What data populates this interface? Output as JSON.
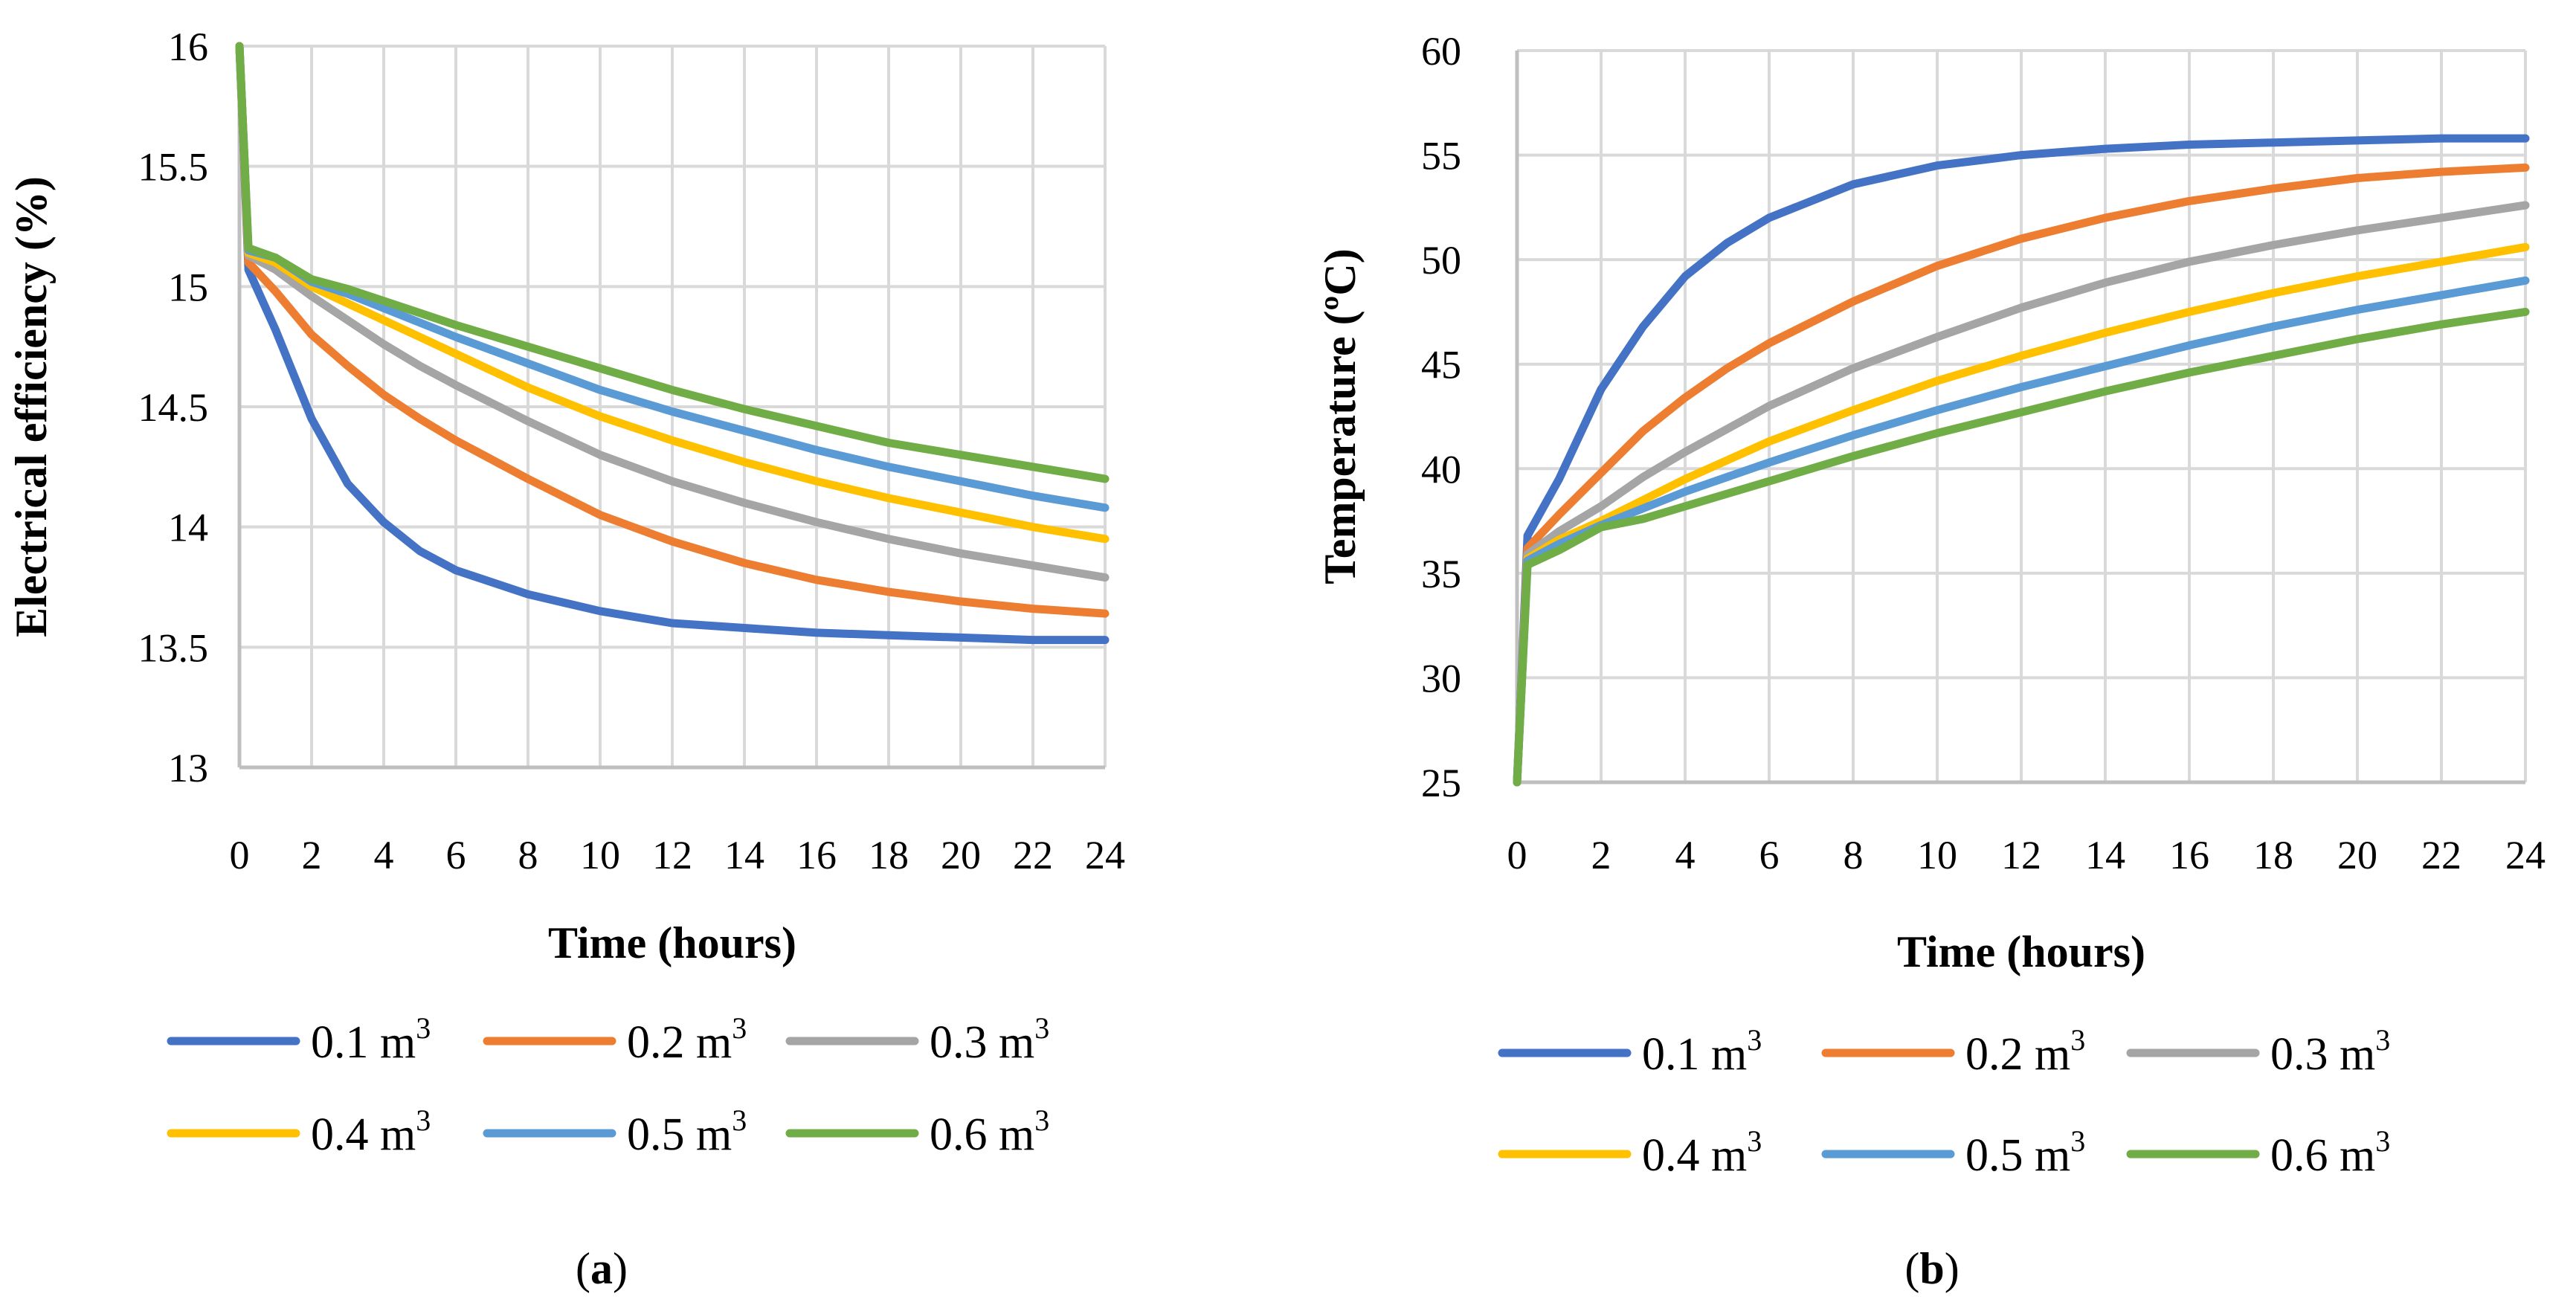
{
  "colors": {
    "0.1": "#4472C4",
    "0.2": "#ED7D31",
    "0.3": "#A5A5A5",
    "0.4": "#FFC000",
    "0.5": "#5B9BD5",
    "0.6": "#70AD47",
    "grid": "#d9d9d9",
    "axis": "#bfbfbf"
  },
  "legend_unit": "m",
  "legend_sup": "3",
  "chart_data": [
    {
      "type": "line",
      "panel_label": {
        "open": "(",
        "letter": "a",
        "close": ")"
      },
      "xlabel": "Time (hours)",
      "ylabel": "Electrical efficiency (%)",
      "xlim": [
        0,
        24
      ],
      "ylim": [
        13,
        16
      ],
      "x_ticks": [
        "0",
        "2",
        "4",
        "6",
        "8",
        "10",
        "12",
        "14",
        "16",
        "18",
        "20",
        "22",
        "24"
      ],
      "y_ticks": [
        "13",
        "13.5",
        "14",
        "14.5",
        "15",
        "15.5",
        "16"
      ],
      "grid": true,
      "legend_position": "bottom",
      "series": [
        {
          "name": "0.1",
          "color_key": "0.1",
          "x": [
            0,
            0.25,
            1,
            2,
            3,
            4,
            5,
            6,
            8,
            10,
            12,
            14,
            16,
            18,
            20,
            22,
            24
          ],
          "y": [
            16,
            15.07,
            14.82,
            14.45,
            14.18,
            14.02,
            13.9,
            13.82,
            13.72,
            13.65,
            13.6,
            13.58,
            13.56,
            13.55,
            13.54,
            13.53,
            13.53
          ]
        },
        {
          "name": "0.2",
          "color_key": "0.2",
          "x": [
            0,
            0.25,
            1,
            2,
            3,
            4,
            5,
            6,
            8,
            10,
            12,
            14,
            16,
            18,
            20,
            22,
            24
          ],
          "y": [
            16,
            15.1,
            14.98,
            14.8,
            14.67,
            14.55,
            14.45,
            14.36,
            14.2,
            14.05,
            13.94,
            13.85,
            13.78,
            13.73,
            13.69,
            13.66,
            13.64
          ]
        },
        {
          "name": "0.3",
          "color_key": "0.3",
          "x": [
            0,
            0.25,
            1,
            2,
            3,
            4,
            5,
            6,
            8,
            10,
            12,
            14,
            16,
            18,
            20,
            22,
            24
          ],
          "y": [
            16,
            15.13,
            15.07,
            14.96,
            14.86,
            14.76,
            14.67,
            14.59,
            14.44,
            14.3,
            14.19,
            14.1,
            14.02,
            13.95,
            13.89,
            13.84,
            13.79
          ]
        },
        {
          "name": "0.4",
          "color_key": "0.4",
          "x": [
            0,
            0.25,
            1,
            2,
            3,
            4,
            5,
            6,
            8,
            10,
            12,
            14,
            16,
            18,
            20,
            22,
            24
          ],
          "y": [
            16,
            15.14,
            15.1,
            15.0,
            14.93,
            14.86,
            14.79,
            14.72,
            14.58,
            14.46,
            14.36,
            14.27,
            14.19,
            14.12,
            14.06,
            14.0,
            13.95
          ]
        },
        {
          "name": "0.5",
          "color_key": "0.5",
          "x": [
            0,
            0.25,
            1,
            2,
            3,
            4,
            5,
            6,
            8,
            10,
            12,
            14,
            16,
            18,
            20,
            22,
            24
          ],
          "y": [
            16,
            15.15,
            15.12,
            15.02,
            14.97,
            14.91,
            14.85,
            14.79,
            14.68,
            14.57,
            14.48,
            14.4,
            14.32,
            14.25,
            14.19,
            14.13,
            14.08
          ]
        },
        {
          "name": "0.6",
          "color_key": "0.6",
          "x": [
            0,
            0.25,
            1,
            2,
            3,
            4,
            5,
            6,
            8,
            10,
            12,
            14,
            16,
            18,
            20,
            22,
            24
          ],
          "y": [
            16,
            15.16,
            15.12,
            15.03,
            14.99,
            14.94,
            14.89,
            14.84,
            14.75,
            14.66,
            14.57,
            14.49,
            14.42,
            14.35,
            14.3,
            14.25,
            14.2
          ]
        }
      ]
    },
    {
      "type": "line",
      "panel_label": {
        "open": "(",
        "letter": "b",
        "close": ")"
      },
      "xlabel": "Time (hours)",
      "ylabel": "Temperature (ºC)",
      "xlim": [
        0,
        24
      ],
      "ylim": [
        25,
        60
      ],
      "x_ticks": [
        "0",
        "2",
        "4",
        "6",
        "8",
        "10",
        "12",
        "14",
        "16",
        "18",
        "20",
        "22",
        "24"
      ],
      "y_ticks": [
        "25",
        "30",
        "35",
        "40",
        "45",
        "50",
        "55",
        "60"
      ],
      "grid": true,
      "legend_position": "bottom",
      "series": [
        {
          "name": "0.1",
          "color_key": "0.1",
          "x": [
            0,
            0.25,
            1,
            2,
            3,
            4,
            5,
            6,
            8,
            10,
            12,
            14,
            16,
            18,
            20,
            22,
            24
          ],
          "y": [
            25,
            36.8,
            39.5,
            43.8,
            46.8,
            49.2,
            50.8,
            52.0,
            53.6,
            54.5,
            55.0,
            55.3,
            55.5,
            55.6,
            55.7,
            55.8,
            55.8
          ]
        },
        {
          "name": "0.2",
          "color_key": "0.2",
          "x": [
            0,
            0.25,
            1,
            2,
            3,
            4,
            5,
            6,
            8,
            10,
            12,
            14,
            16,
            18,
            20,
            22,
            24
          ],
          "y": [
            25,
            36.2,
            37.8,
            39.8,
            41.8,
            43.4,
            44.8,
            46.0,
            48.0,
            49.7,
            51.0,
            52.0,
            52.8,
            53.4,
            53.9,
            54.2,
            54.4
          ]
        },
        {
          "name": "0.3",
          "color_key": "0.3",
          "x": [
            0,
            0.25,
            1,
            2,
            3,
            4,
            5,
            6,
            8,
            10,
            12,
            14,
            16,
            18,
            20,
            22,
            24
          ],
          "y": [
            25,
            35.9,
            37.0,
            38.2,
            39.6,
            40.8,
            41.9,
            43.0,
            44.8,
            46.3,
            47.7,
            48.9,
            49.9,
            50.7,
            51.4,
            52.0,
            52.6
          ]
        },
        {
          "name": "0.4",
          "color_key": "0.4",
          "x": [
            0,
            0.25,
            1,
            2,
            3,
            4,
            5,
            6,
            8,
            10,
            12,
            14,
            16,
            18,
            20,
            22,
            24
          ],
          "y": [
            25,
            35.7,
            36.6,
            37.5,
            38.5,
            39.5,
            40.4,
            41.3,
            42.8,
            44.2,
            45.4,
            46.5,
            47.5,
            48.4,
            49.2,
            49.9,
            50.6
          ]
        },
        {
          "name": "0.5",
          "color_key": "0.5",
          "x": [
            0,
            0.25,
            1,
            2,
            3,
            4,
            5,
            6,
            8,
            10,
            12,
            14,
            16,
            18,
            20,
            22,
            24
          ],
          "y": [
            25,
            35.6,
            36.4,
            37.3,
            38.1,
            38.9,
            39.6,
            40.3,
            41.6,
            42.8,
            43.9,
            44.9,
            45.9,
            46.8,
            47.6,
            48.3,
            49.0
          ]
        },
        {
          "name": "0.6",
          "color_key": "0.6",
          "x": [
            0,
            0.25,
            1,
            2,
            3,
            4,
            5,
            6,
            8,
            10,
            12,
            14,
            16,
            18,
            20,
            22,
            24
          ],
          "y": [
            25,
            35.4,
            36.1,
            37.2,
            37.6,
            38.2,
            38.8,
            39.4,
            40.6,
            41.7,
            42.7,
            43.7,
            44.6,
            45.4,
            46.2,
            46.9,
            47.5
          ]
        }
      ]
    }
  ]
}
